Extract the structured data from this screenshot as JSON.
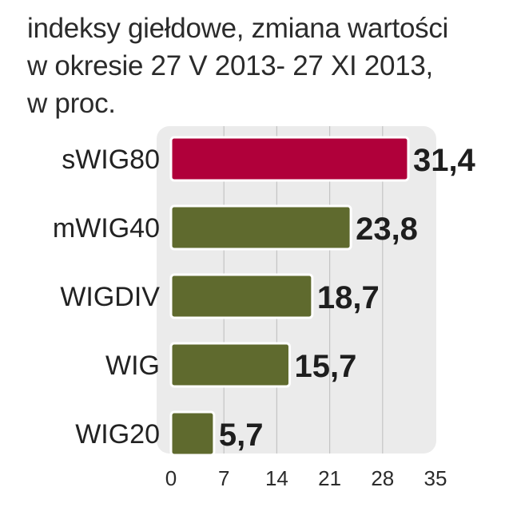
{
  "chart_data": {
    "type": "bar",
    "orientation": "horizontal",
    "title": "indeksy giełdowe, zmiana wartości\nw okresie  27 V 2013- 27 XI 2013,\nw proc.",
    "categories": [
      "sWIG80",
      "mWIG40",
      "WIGDIV",
      "WIG",
      "WIG20"
    ],
    "values": [
      31.4,
      23.8,
      18.7,
      15.7,
      5.7
    ],
    "value_labels": [
      "31,4",
      "23,8",
      "18,7",
      "15,7",
      "5,7"
    ],
    "xticks": [
      "0",
      "7",
      "14",
      "21",
      "28",
      "35"
    ],
    "xlim": [
      0,
      35
    ],
    "grid": true,
    "colors": {
      "highlight": "#b0003a",
      "bar": "#5f6a2e",
      "background": "#ebebeb",
      "grid": "#c4c4c4"
    },
    "highlight_index": 0
  }
}
